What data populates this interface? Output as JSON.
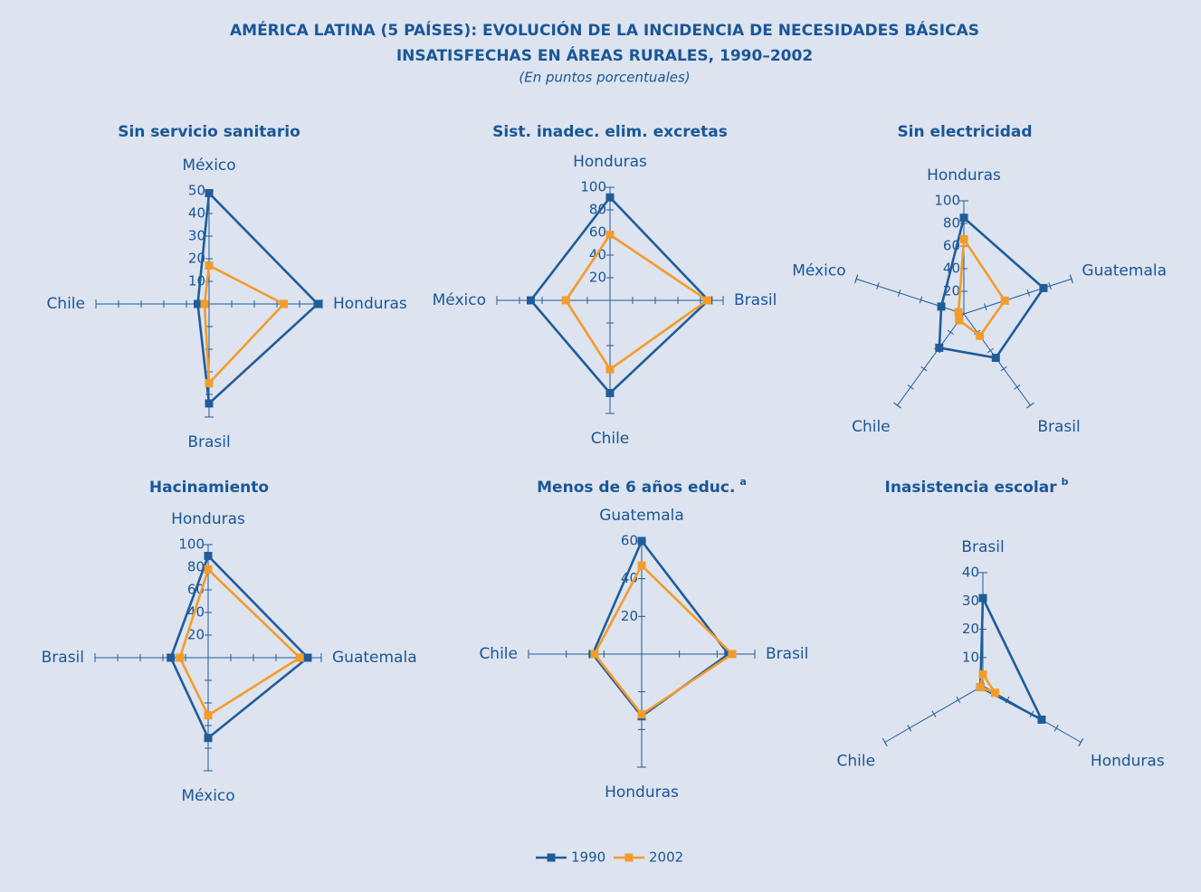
{
  "header": {
    "title_lines": [
      "AMÉRICA LATINA (5 PAÍSES): EVOLUCIÓN DE LA INCIDENCIA DE NECESIDADES BÁSICAS",
      "INSATISFECHAS EN ÁREAS RURALES, 1990–2002"
    ],
    "subtitle": "(En puntos porcentuales)"
  },
  "chart_data": [
    {
      "type": "radar",
      "title": "Sin servicio sanitario",
      "categories": [
        "México",
        "Honduras",
        "Brasil",
        "Chile"
      ],
      "series": [
        {
          "name": "1990",
          "color": "#1f5c99",
          "values": [
            49,
            48,
            44,
            5
          ]
        },
        {
          "name": "2002",
          "color": "#f39c2a",
          "values": [
            17,
            33,
            35,
            2
          ]
        }
      ],
      "rlim": [
        0,
        50
      ],
      "rticks": [
        10,
        20,
        30,
        40,
        50
      ]
    },
    {
      "type": "radar",
      "title": "Sist. inadec. elim. excretas",
      "categories": [
        "Honduras",
        "Brasil",
        "Chile",
        "México"
      ],
      "series": [
        {
          "name": "1990",
          "color": "#1f5c99",
          "values": [
            91,
            87,
            82,
            70
          ]
        },
        {
          "name": "2002",
          "color": "#f39c2a",
          "values": [
            58,
            86,
            61,
            39
          ]
        }
      ],
      "rlim": [
        0,
        100
      ],
      "rticks": [
        20,
        40,
        60,
        80,
        100
      ]
    },
    {
      "type": "radar",
      "title": "Sin electricidad",
      "categories": [
        "Honduras",
        "Guatemala",
        "Brasil",
        "Chile",
        "México"
      ],
      "series": [
        {
          "name": "1990",
          "color": "#1f5c99",
          "values": [
            85,
            74,
            48,
            37,
            21
          ]
        },
        {
          "name": "2002",
          "color": "#f39c2a",
          "values": [
            66,
            38,
            24,
            7,
            5
          ]
        }
      ],
      "rlim": [
        0,
        100
      ],
      "rticks": [
        20,
        40,
        60,
        80,
        100
      ]
    },
    {
      "type": "radar",
      "title": "Hacinamiento",
      "categories": [
        "Honduras",
        "Guatemala",
        "México",
        "Brasil"
      ],
      "series": [
        {
          "name": "1990",
          "color": "#1f5c99",
          "values": [
            90,
            88,
            71,
            33
          ]
        },
        {
          "name": "2002",
          "color": "#f39c2a",
          "values": [
            78,
            81,
            51,
            25
          ]
        }
      ],
      "rlim": [
        0,
        100
      ],
      "rticks": [
        20,
        40,
        60,
        80,
        100
      ]
    },
    {
      "type": "radar",
      "title": "Menos de 6 años educ.",
      "title_note": "a",
      "categories": [
        "Guatemala",
        "Brasil",
        "Honduras",
        "Chile"
      ],
      "series": [
        {
          "name": "1990",
          "color": "#1f5c99",
          "values": [
            60,
            46,
            33,
            26
          ]
        },
        {
          "name": "2002",
          "color": "#f39c2a",
          "values": [
            47,
            48,
            32,
            25
          ]
        }
      ],
      "rlim": [
        0,
        60
      ],
      "rticks": [
        20,
        40,
        60
      ]
    },
    {
      "type": "radar",
      "title": "Inasistencia escolar",
      "title_note": "b",
      "categories": [
        "Brasil",
        "Honduras",
        "Chile"
      ],
      "series": [
        {
          "name": "1990",
          "color": "#1f5c99",
          "values": [
            31,
            24,
            1
          ]
        },
        {
          "name": "2002",
          "color": "#f39c2a",
          "values": [
            4,
            5,
            1
          ]
        }
      ],
      "rlim": [
        0,
        40
      ],
      "rticks": [
        10,
        20,
        30,
        40
      ]
    }
  ]
}
